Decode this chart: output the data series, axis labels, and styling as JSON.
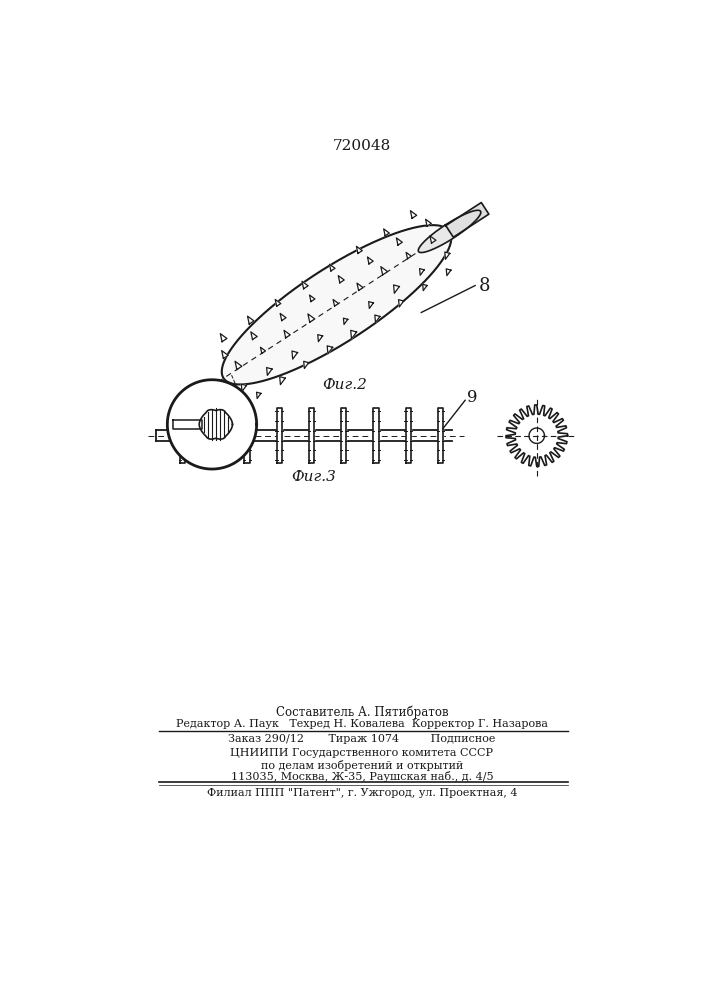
{
  "patent_number": "720048",
  "fig2_label": "8",
  "fig3_label": "9",
  "fig2_caption": "Фиг.2",
  "fig3_caption": "Фиг.3",
  "footer_lines": [
    "Составитель А. Пятибратов",
    "Редактор А. Паук   Техред Н. Ковалева  Корректор Г. Назарова",
    "Заказ 290/12       Тираж 1074         Подписное",
    "ЦНИИПИ Государственного комитета СССР",
    "по делам изобретений и открытий",
    "113035, Москва, Ж-35, Раушская наб., д. 4/5",
    "Филиал ППП \"Патент\", г. Ужгород, ул. Проектная, 4"
  ],
  "bg_color": "#ffffff",
  "line_color": "#1a1a1a"
}
